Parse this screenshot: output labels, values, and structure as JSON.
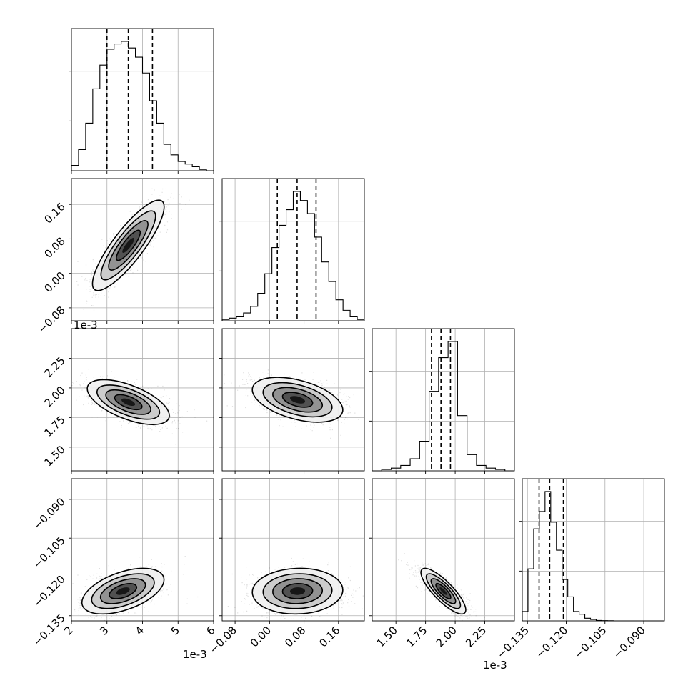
{
  "chart_data": {
    "type": "corner",
    "grid": true,
    "parameters": [
      {
        "range": [
          2.0,
          6.0
        ],
        "ticks": [
          2,
          3,
          4,
          5,
          6
        ],
        "tick_labels": [
          "2",
          "3",
          "4",
          "5",
          "6"
        ],
        "offset_label": "1e-3",
        "quantiles": [
          3.0,
          3.6,
          4.28
        ],
        "hist": {
          "edges": [
            2.0,
            2.2,
            2.4,
            2.6,
            2.8,
            3.0,
            3.2,
            3.4,
            3.6,
            3.8,
            4.0,
            4.2,
            4.4,
            4.6,
            4.8,
            5.0,
            5.2,
            5.4,
            5.6,
            5.8,
            6.0
          ],
          "counts": [
            0.04,
            0.16,
            0.36,
            0.62,
            0.8,
            0.92,
            0.96,
            0.98,
            0.93,
            0.86,
            0.74,
            0.53,
            0.36,
            0.2,
            0.12,
            0.07,
            0.05,
            0.03,
            0.01,
            0.0
          ]
        }
      },
      {
        "range": [
          -0.11,
          0.22
        ],
        "ticks": [
          -0.08,
          0.0,
          0.08,
          0.16
        ],
        "tick_labels": [
          "−0.08",
          "0.00",
          "0.08",
          "0.16"
        ],
        "offset_label": "",
        "quantiles": [
          0.018,
          0.064,
          0.108
        ],
        "hist": {
          "edges": [
            -0.11,
            -0.0935,
            -0.077,
            -0.0605,
            -0.044,
            -0.0275,
            -0.011,
            0.0055,
            0.022,
            0.0385,
            0.055,
            0.0715,
            0.088,
            0.1045,
            0.121,
            0.1375,
            0.154,
            0.1705,
            0.187,
            0.2035,
            0.22
          ],
          "counts": [
            0.01,
            0.02,
            0.03,
            0.06,
            0.11,
            0.21,
            0.36,
            0.56,
            0.73,
            0.85,
            0.99,
            0.92,
            0.82,
            0.64,
            0.45,
            0.3,
            0.16,
            0.08,
            0.03,
            0.01
          ]
        }
      },
      {
        "range": [
          1.3,
          2.5
        ],
        "ticks": [
          1.5,
          1.75,
          2.0,
          2.25
        ],
        "tick_labels": [
          "1.50",
          "1.75",
          "2.00",
          "2.25"
        ],
        "offset_label": "1e-3",
        "quantiles": [
          1.8,
          1.88,
          1.96
        ],
        "hist": {
          "edges": [
            1.3,
            1.38,
            1.46,
            1.54,
            1.62,
            1.7,
            1.78,
            1.86,
            1.94,
            2.02,
            2.1,
            2.18,
            2.26,
            2.34,
            2.42,
            2.5
          ],
          "counts": [
            0.0,
            0.01,
            0.02,
            0.04,
            0.09,
            0.22,
            0.59,
            0.84,
            0.96,
            0.41,
            0.12,
            0.04,
            0.02,
            0.01,
            0.0
          ]
        }
      },
      {
        "range": [
          -0.137,
          -0.082
        ],
        "ticks": [
          -0.135,
          -0.12,
          -0.105,
          -0.09
        ],
        "tick_labels": [
          "−0.135",
          "−0.120",
          "−0.105",
          "−0.090"
        ],
        "offset_label": "",
        "quantiles": [
          -0.1305,
          -0.1264,
          -0.1211
        ],
        "hist": {
          "edges": [
            -0.137,
            -0.1348,
            -0.1326,
            -0.1304,
            -0.1282,
            -0.126,
            -0.1238,
            -0.1216,
            -0.1194,
            -0.1172,
            -0.115,
            -0.1128,
            -0.1106,
            -0.1084,
            -0.1062,
            -0.104,
            -0.1018,
            -0.0996,
            -0.0974,
            -0.0952,
            -0.093,
            -0.0908,
            -0.0886,
            -0.0864,
            -0.0842,
            -0.082
          ],
          "counts": [
            0.07,
            0.39,
            0.69,
            0.82,
            0.97,
            0.74,
            0.53,
            0.31,
            0.18,
            0.07,
            0.05,
            0.02,
            0.01,
            0.003,
            0.002,
            0.001,
            0,
            0,
            0,
            0,
            0,
            0,
            0,
            0,
            0
          ]
        }
      }
    ],
    "pairs": [
      {
        "xi": 0,
        "yi": 1,
        "center": [
          3.6,
          0.065
        ],
        "sd": [
          0.48,
          0.05
        ],
        "rho": 0.85,
        "n": 1300
      },
      {
        "xi": 0,
        "yi": 2,
        "center": [
          3.6,
          1.88
        ],
        "sd": [
          0.55,
          0.09
        ],
        "rho": -0.6,
        "n": 1300
      },
      {
        "xi": 1,
        "yi": 2,
        "center": [
          0.065,
          1.9
        ],
        "sd": [
          0.05,
          0.09
        ],
        "rho": -0.45,
        "n": 1300
      },
      {
        "xi": 0,
        "yi": 3,
        "center": [
          3.45,
          -0.1255
        ],
        "sd": [
          0.55,
          0.0042
        ],
        "rho": 0.5,
        "n": 1300
      },
      {
        "xi": 1,
        "yi": 3,
        "center": [
          0.065,
          -0.1255
        ],
        "sd": [
          0.05,
          0.0042
        ],
        "rho": 0.05,
        "n": 1300
      },
      {
        "xi": 2,
        "yi": 3,
        "center": [
          1.9,
          -0.1255
        ],
        "sd": [
          0.09,
          0.0042
        ],
        "rho": -0.82,
        "n": 1300
      }
    ]
  }
}
